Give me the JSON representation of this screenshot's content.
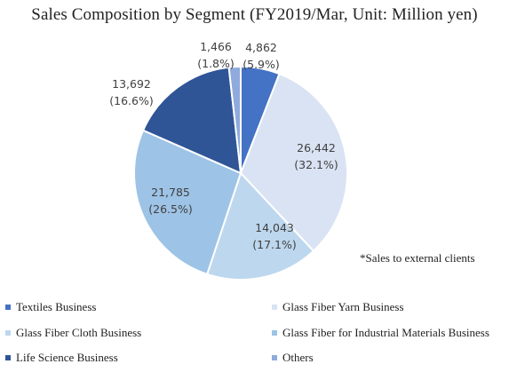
{
  "chart_data": {
    "type": "pie",
    "title": "Sales Composition by Segment (FY2019/Mar, Unit: Million yen)",
    "note": "*Sales to external clients",
    "slices": [
      {
        "name": "Textiles Business",
        "value": 4862,
        "value_text": "4,862",
        "pct_text": "(5.9%)",
        "color": "#4472c4"
      },
      {
        "name": "Glass Fiber Yarn Business",
        "value": 26442,
        "value_text": "26,442",
        "pct_text": "(32.1%)",
        "color": "#dae3f3"
      },
      {
        "name": "Glass Fiber Cloth Business",
        "value": 14043,
        "value_text": "14,043",
        "pct_text": "(17.1%)",
        "color": "#bdd7ee"
      },
      {
        "name": "Glass Fiber for Industrial Materials Business",
        "value": 21785,
        "value_text": "21,785",
        "pct_text": "(26.5%)",
        "color": "#9dc3e6"
      },
      {
        "name": "Life Science Business",
        "value": 13692,
        "value_text": "13,692",
        "pct_text": "(16.6%)",
        "color": "#2f5597"
      },
      {
        "name": "Others",
        "value": 1466,
        "value_text": "1,466",
        "pct_text": "(1.8%)",
        "color": "#8faadc"
      }
    ],
    "legend_position": "bottom"
  }
}
